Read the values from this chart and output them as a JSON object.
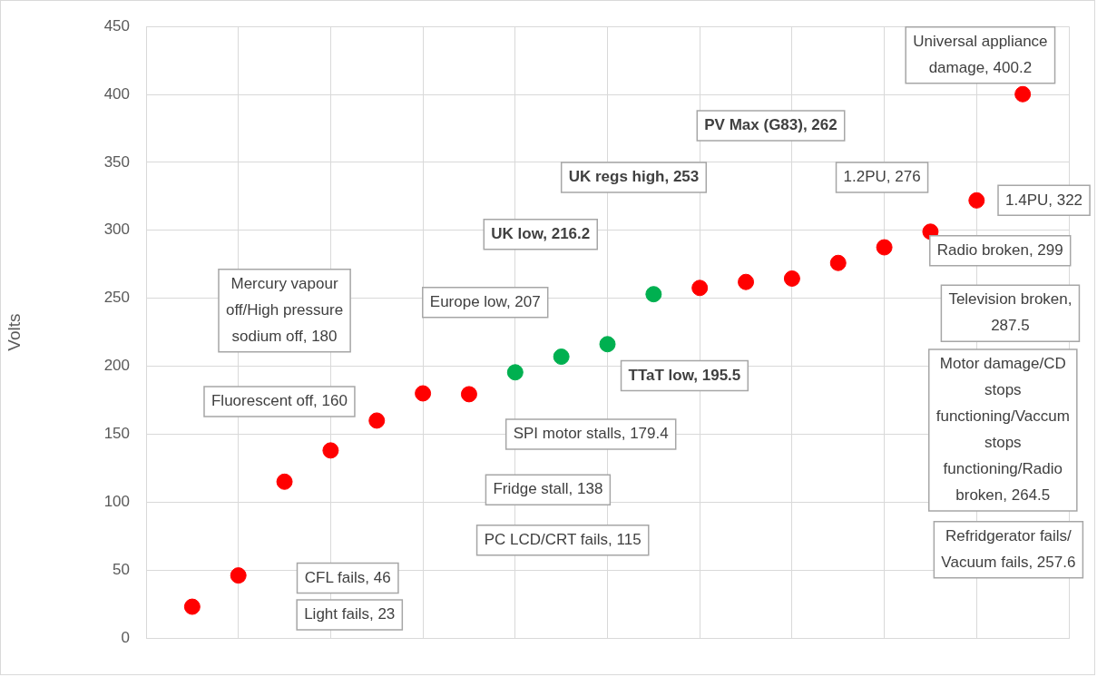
{
  "chart_data": {
    "type": "scatter",
    "ylabel": "Volts",
    "categories": [
      null,
      null,
      null,
      null,
      null,
      null,
      null,
      null,
      null,
      null,
      null,
      null,
      null,
      null,
      null,
      null,
      null,
      null,
      null
    ],
    "values": [
      23,
      46,
      115,
      138,
      160,
      180,
      179.4,
      195.5,
      207,
      216.2,
      253,
      257.6,
      262,
      264.5,
      276,
      287.5,
      299,
      322,
      400.2
    ],
    "colors": [
      "#ff0000",
      "#ff0000",
      "#ff0000",
      "#ff0000",
      "#ff0000",
      "#ff0000",
      "#ff0000",
      "#00b050",
      "#00b050",
      "#00b050",
      "#00b050",
      "#ff0000",
      "#ff0000",
      "#ff0000",
      "#ff0000",
      "#ff0000",
      "#ff0000",
      "#ff0000",
      "#ff0000"
    ],
    "ylim": [
      0,
      450
    ],
    "yticks": [
      0,
      50,
      100,
      150,
      200,
      250,
      300,
      350,
      400,
      450
    ],
    "grid": true,
    "legend": false,
    "marker": "circle",
    "tick_labels": "y",
    "annotations": [
      "Light fails, 23",
      "CFL fails, 46",
      "PC LCD/CRT fails, 115",
      "Fridge stall, 138",
      "Fluorescent off, 160",
      "Mercury vapour\noff/High pressure\nsodium off, 180",
      "SPI motor stalls, 179.4",
      "TTaT low, 195.5",
      "Europe low, 207",
      "UK low, 216.2",
      "UK regs high, 253",
      "Refridgerator fails/\nVacuum fails, 257.6",
      "PV Max (G83), 262",
      "Motor damage/CD\nstops\nfunctioning/Vaccum\nstops\nfunctioning/Radio\nbroken, 264.5",
      "1.2PU, 276",
      "Television broken,\n287.5",
      "Radio broken, 299",
      "1.4PU, 322",
      "Universal appliance\ndamage, 400.2"
    ]
  }
}
